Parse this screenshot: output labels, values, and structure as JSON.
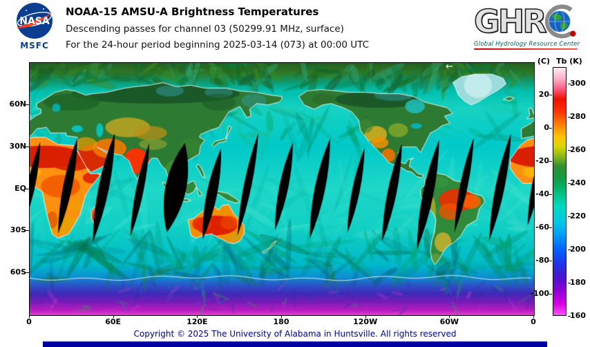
{
  "header": {
    "title": "NOAA-15 AMSU-A Brightness Temperatures",
    "subtitle_channel": "Descending passes for channel 03 (50299.91 MHz, surface)",
    "subtitle_period": "For the 24-hour period beginning 2025-03-14 (073) at 00:00 UTC",
    "nasa_logo": {
      "agency": "NASA",
      "center": "MSFC"
    },
    "ghrc_logo": {
      "letters": "GHR",
      "tagline": "Global Hydrology Resource Center"
    }
  },
  "map": {
    "direction_arrow": "←",
    "y_ticks": [
      {
        "label": "60N",
        "lat": 60
      },
      {
        "label": "30N",
        "lat": 30
      },
      {
        "label": "EQ",
        "lat": 0
      },
      {
        "label": "30S",
        "lat": -30
      },
      {
        "label": "60S",
        "lat": -60
      }
    ],
    "x_ticks": [
      {
        "label": "0",
        "lon": 0
      },
      {
        "label": "60E",
        "lon": 60
      },
      {
        "label": "120E",
        "lon": 120
      },
      {
        "label": "180",
        "lon": 180
      },
      {
        "label": "120W",
        "lon": 240
      },
      {
        "label": "60W",
        "lon": 300
      },
      {
        "label": "0",
        "lon": 360
      }
    ]
  },
  "colorbar": {
    "left_unit": "(C)",
    "right_unit": "Tb (K)",
    "kelvin_range": [
      160,
      310
    ],
    "celsius_ticks": [
      20,
      0,
      -20,
      -40,
      -60,
      -80,
      -100
    ],
    "kelvin_ticks": [
      300,
      280,
      260,
      240,
      220,
      200,
      180,
      160
    ],
    "gradient_stops": [
      {
        "k": 160,
        "color": "#ff50ff"
      },
      {
        "k": 167,
        "color": "#d400e0"
      },
      {
        "k": 175,
        "color": "#8e00d8"
      },
      {
        "k": 183,
        "color": "#4b14cc"
      },
      {
        "k": 191,
        "color": "#1e35e8"
      },
      {
        "k": 200,
        "color": "#0063ff"
      },
      {
        "k": 209,
        "color": "#00a2f5"
      },
      {
        "k": 217,
        "color": "#00c9e2"
      },
      {
        "k": 226,
        "color": "#00dac0"
      },
      {
        "k": 234,
        "color": "#00c080"
      },
      {
        "k": 242,
        "color": "#109e48"
      },
      {
        "k": 250,
        "color": "#2f8f2f"
      },
      {
        "k": 256,
        "color": "#86b617"
      },
      {
        "k": 262,
        "color": "#d6d600"
      },
      {
        "k": 268,
        "color": "#ffc400"
      },
      {
        "k": 275,
        "color": "#ff8400"
      },
      {
        "k": 283,
        "color": "#ff3600"
      },
      {
        "k": 291,
        "color": "#ee0f00"
      },
      {
        "k": 297,
        "color": "#ff5a7e"
      },
      {
        "k": 303,
        "color": "#ffabc4"
      },
      {
        "k": 310,
        "color": "#fdeef3"
      }
    ]
  },
  "footer": {
    "copyright": "Copyright © 2025 The University of Alabama in Huntsville.  All rights reserved"
  },
  "colors": {
    "nasa_blue": "#0b3d91",
    "nasa_red": "#fc3d21",
    "copyright_text": "#00008b",
    "bottom_bar": "#0000a0",
    "ghrc_teal": "#006070",
    "ghrc_red": "#cc0000",
    "ocean_cyan": "#20d8c8",
    "hot_land": "#dc1800",
    "swath_gap": "#000000"
  }
}
